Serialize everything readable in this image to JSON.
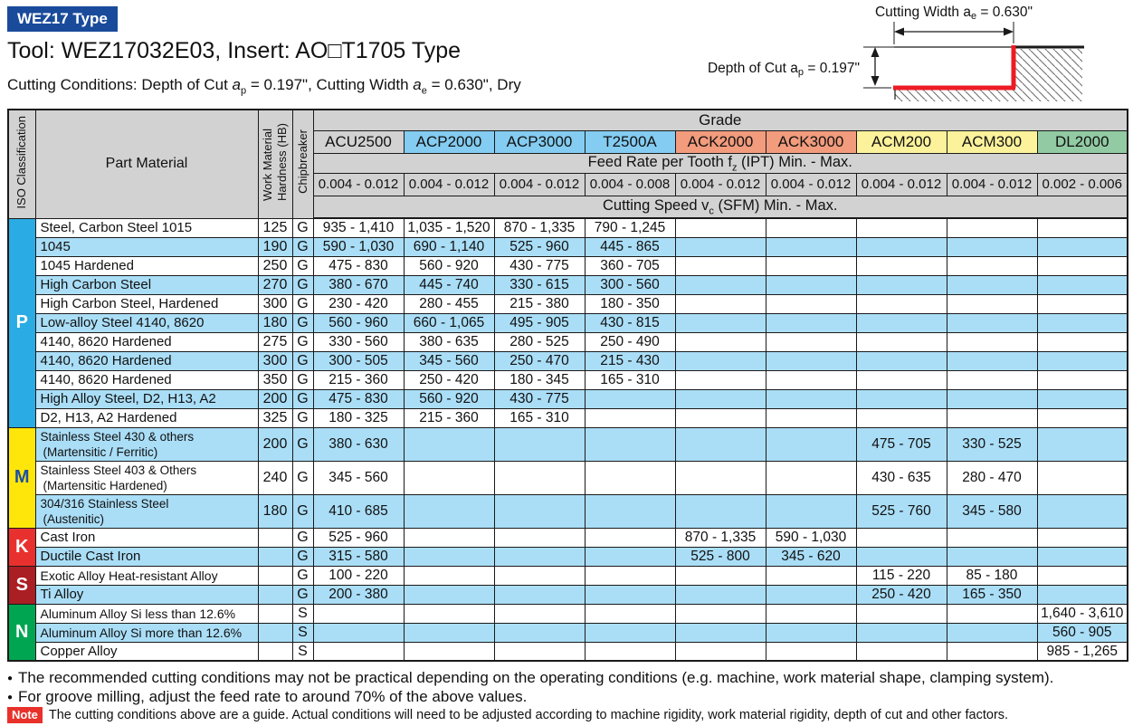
{
  "header": {
    "badge": "WEZ17 Type",
    "title": "Tool: WEZ17032E03, Insert: AO□T1705 Type",
    "conditions": {
      "prefix": "Cutting Conditions: Depth of Cut ",
      "a_symbol": "a",
      "p_sub": "p",
      "mid": " = 0.197\", Cutting Width ",
      "e_sub": "e",
      "suffix": " = 0.630\", Dry"
    }
  },
  "diagram": {
    "width_label": {
      "pre": "Cutting Width a",
      "sub": "e",
      "post": " = 0.630\""
    },
    "depth_label": {
      "pre": "Depth of Cut a",
      "sub": "p",
      "post": " = 0.197\""
    }
  },
  "table": {
    "headers": {
      "iso": "ISO Classification",
      "part_material": "Part Material",
      "hardness_line1": "Work Material",
      "hardness_line2": "Hardness (HB)",
      "chipbreaker": "Chipbreaker",
      "grade": "Grade",
      "feed": {
        "pre": "Feed Rate per Tooth f",
        "sub": "z",
        "post": " (IPT) Min. - Max."
      },
      "speed": {
        "pre": "Cutting Speed v",
        "sub": "c",
        "post": " (SFM) Min. - Max."
      }
    },
    "grades": [
      {
        "name": "ACU2500",
        "bg": "multi"
      },
      {
        "name": "ACP2000",
        "bg": "#84ccf1"
      },
      {
        "name": "ACP3000",
        "bg": "#84ccf1"
      },
      {
        "name": "T2500A",
        "bg": "#84ccf1"
      },
      {
        "name": "ACK2000",
        "bg": "#f29b7d"
      },
      {
        "name": "ACK3000",
        "bg": "#f29b7d"
      },
      {
        "name": "ACM200",
        "bg": "#fbf29b"
      },
      {
        "name": "ACM300",
        "bg": "#fbf29b"
      },
      {
        "name": "DL2000",
        "bg": "#92cba3"
      }
    ],
    "feed_rates": [
      "0.004 - 0.012",
      "0.004 - 0.012",
      "0.004 - 0.012",
      "0.004 - 0.008",
      "0.004 - 0.012",
      "0.004 - 0.012",
      "0.004 - 0.012",
      "0.004 - 0.012",
      "0.002 - 0.006"
    ],
    "sections": [
      {
        "label": "P",
        "bg": "#2aabe3",
        "fg": "#ffffff",
        "rows": [
          {
            "material": "Steel, Carbon Steel 1015",
            "hb": "125",
            "cb": "G",
            "speeds": [
              "935 - 1,410",
              "1,035 - 1,520",
              "870 - 1,335",
              "790 - 1,245",
              "",
              "",
              "",
              "",
              ""
            ]
          },
          {
            "material": "1045",
            "hb": "190",
            "cb": "G",
            "speeds": [
              "590 - 1,030",
              "690 - 1,140",
              "525 - 960",
              "445 - 865",
              "",
              "",
              "",
              "",
              ""
            ]
          },
          {
            "material": "1045 Hardened",
            "hb": "250",
            "cb": "G",
            "speeds": [
              "475 - 830",
              "560 - 920",
              "430 - 775",
              "360 - 705",
              "",
              "",
              "",
              "",
              ""
            ]
          },
          {
            "material": "High Carbon Steel",
            "hb": "270",
            "cb": "G",
            "speeds": [
              "380 - 670",
              "445 - 740",
              "330 - 615",
              "300 - 560",
              "",
              "",
              "",
              "",
              ""
            ]
          },
          {
            "material": "High Carbon Steel, Hardened",
            "hb": "300",
            "cb": "G",
            "speeds": [
              "230 - 420",
              "280 - 455",
              "215 - 380",
              "180 - 350",
              "",
              "",
              "",
              "",
              ""
            ]
          },
          {
            "material": "Low-alloy Steel 4140, 8620",
            "hb": "180",
            "cb": "G",
            "speeds": [
              "560 - 960",
              "660 - 1,065",
              "495 - 905",
              "430 - 815",
              "",
              "",
              "",
              "",
              ""
            ]
          },
          {
            "material": "4140, 8620 Hardened",
            "hb": "275",
            "cb": "G",
            "speeds": [
              "330 - 560",
              "380 - 635",
              "280 - 525",
              "250 - 490",
              "",
              "",
              "",
              "",
              ""
            ]
          },
          {
            "material": "4140, 8620 Hardened",
            "hb": "300",
            "cb": "G",
            "speeds": [
              "300 - 505",
              "345 - 560",
              "250 - 470",
              "215 - 430",
              "",
              "",
              "",
              "",
              ""
            ]
          },
          {
            "material": "4140, 8620 Hardened",
            "hb": "350",
            "cb": "G",
            "speeds": [
              "215 - 360",
              "250 - 420",
              "180 - 345",
              "165 - 310",
              "",
              "",
              "",
              "",
              ""
            ]
          },
          {
            "material": "High Alloy Steel,  D2, H13, A2",
            "hb": "200",
            "cb": "G",
            "speeds": [
              "475 - 830",
              "560 - 920",
              "430 - 775",
              "",
              "",
              "",
              "",
              "",
              ""
            ]
          },
          {
            "material": "D2, H13, A2 Hardened",
            "hb": "325",
            "cb": "G",
            "speeds": [
              "180 - 325",
              "215 - 360",
              "165 - 310",
              "",
              "",
              "",
              "",
              "",
              ""
            ]
          }
        ]
      },
      {
        "label": "M",
        "bg": "#ffe60a",
        "fg": "#1d50a2",
        "rows": [
          {
            "material": "Stainless Steel  430 & others",
            "material2": "(Martensitic / Ferritic)",
            "hb": "200",
            "cb": "G",
            "speeds": [
              "380 - 630",
              "",
              "",
              "",
              "",
              "",
              "475 - 705",
              "330 - 525",
              ""
            ]
          },
          {
            "material": "Stainless Steel  403 & Others",
            "material2": "(Martensitic Hardened)",
            "hb": "240",
            "cb": "G",
            "speeds": [
              "345 - 560",
              "",
              "",
              "",
              "",
              "",
              "430 - 635",
              "280 - 470",
              ""
            ]
          },
          {
            "material": "304/316 Stainless Steel",
            "material2": "(Austenitic)",
            "hb": "180",
            "cb": "G",
            "speeds": [
              "410 - 685",
              "",
              "",
              "",
              "",
              "",
              "525 - 760",
              "345 - 580",
              ""
            ]
          }
        ]
      },
      {
        "label": "K",
        "bg": "#e8312e",
        "fg": "#ffffff",
        "rows": [
          {
            "material": "Cast Iron",
            "hb": "",
            "cb": "G",
            "speeds": [
              "525 - 960",
              "",
              "",
              "",
              "870 - 1,335",
              "590 - 1,030",
              "",
              "",
              ""
            ]
          },
          {
            "material": "Ductile Cast Iron",
            "hb": "",
            "cb": "G",
            "speeds": [
              "315 - 580",
              "",
              "",
              "",
              "525 - 800",
              "345 - 620",
              "",
              "",
              ""
            ]
          }
        ]
      },
      {
        "label": "S",
        "bg": "#aa1f24",
        "fg": "#ffffff",
        "rows": [
          {
            "material": "Exotic Alloy  Heat-resistant Alloy",
            "small": true,
            "hb": "",
            "cb": "G",
            "speeds": [
              "100 - 220",
              "",
              "",
              "",
              "",
              "",
              "115 - 220",
              "85 - 180",
              ""
            ]
          },
          {
            "material": "Ti Alloy",
            "hb": "",
            "cb": "G",
            "speeds": [
              "200 - 380",
              "",
              "",
              "",
              "",
              "",
              "250 - 420",
              "165 - 350",
              ""
            ]
          }
        ]
      },
      {
        "label": "N",
        "bg": "#00a551",
        "fg": "#ffffff",
        "rows": [
          {
            "material": "Aluminum Alloy  Si less than 12.6%",
            "small": true,
            "hb": "",
            "cb": "S",
            "speeds": [
              "",
              "",
              "",
              "",
              "",
              "",
              "",
              "",
              "1,640 - 3,610"
            ]
          },
          {
            "material": "Aluminum Alloy  Si more than 12.6%",
            "small": true,
            "hb": "",
            "cb": "S",
            "speeds": [
              "",
              "",
              "",
              "",
              "",
              "",
              "",
              "",
              "560 - 905"
            ]
          },
          {
            "material": "Copper Alloy",
            "hb": "",
            "cb": "S",
            "speeds": [
              "",
              "",
              "",
              "",
              "",
              "",
              "",
              "",
              "985 - 1,265"
            ]
          }
        ]
      }
    ]
  },
  "footnotes": {
    "bullet_glyph": "●",
    "bullets": [
      "The recommended cutting conditions may not be practical depending on the operating conditions (e.g. machine, work material shape, clamping system).",
      "For groove milling, adjust the feed rate to around 70% of the above values.",
      ""
    ],
    "note_label": "Note",
    "note_text": "The cutting conditions above are a guide. Actual conditions will need to be adjusted according to machine rigidity, work material rigidity, depth of cut and other factors."
  },
  "colors": {
    "brand-blue": "#1a4b9b",
    "note-red": "#e8312a",
    "header-gray": "#d2d2d2",
    "row-blue": "#aadef7",
    "acu-blue": "#8ed3f5",
    "acu-yellow": "#fdf6a6",
    "acu-pink": "#f8cade",
    "diagram-red": "#ed1c24",
    "border-dark": "#1a1a1a"
  }
}
